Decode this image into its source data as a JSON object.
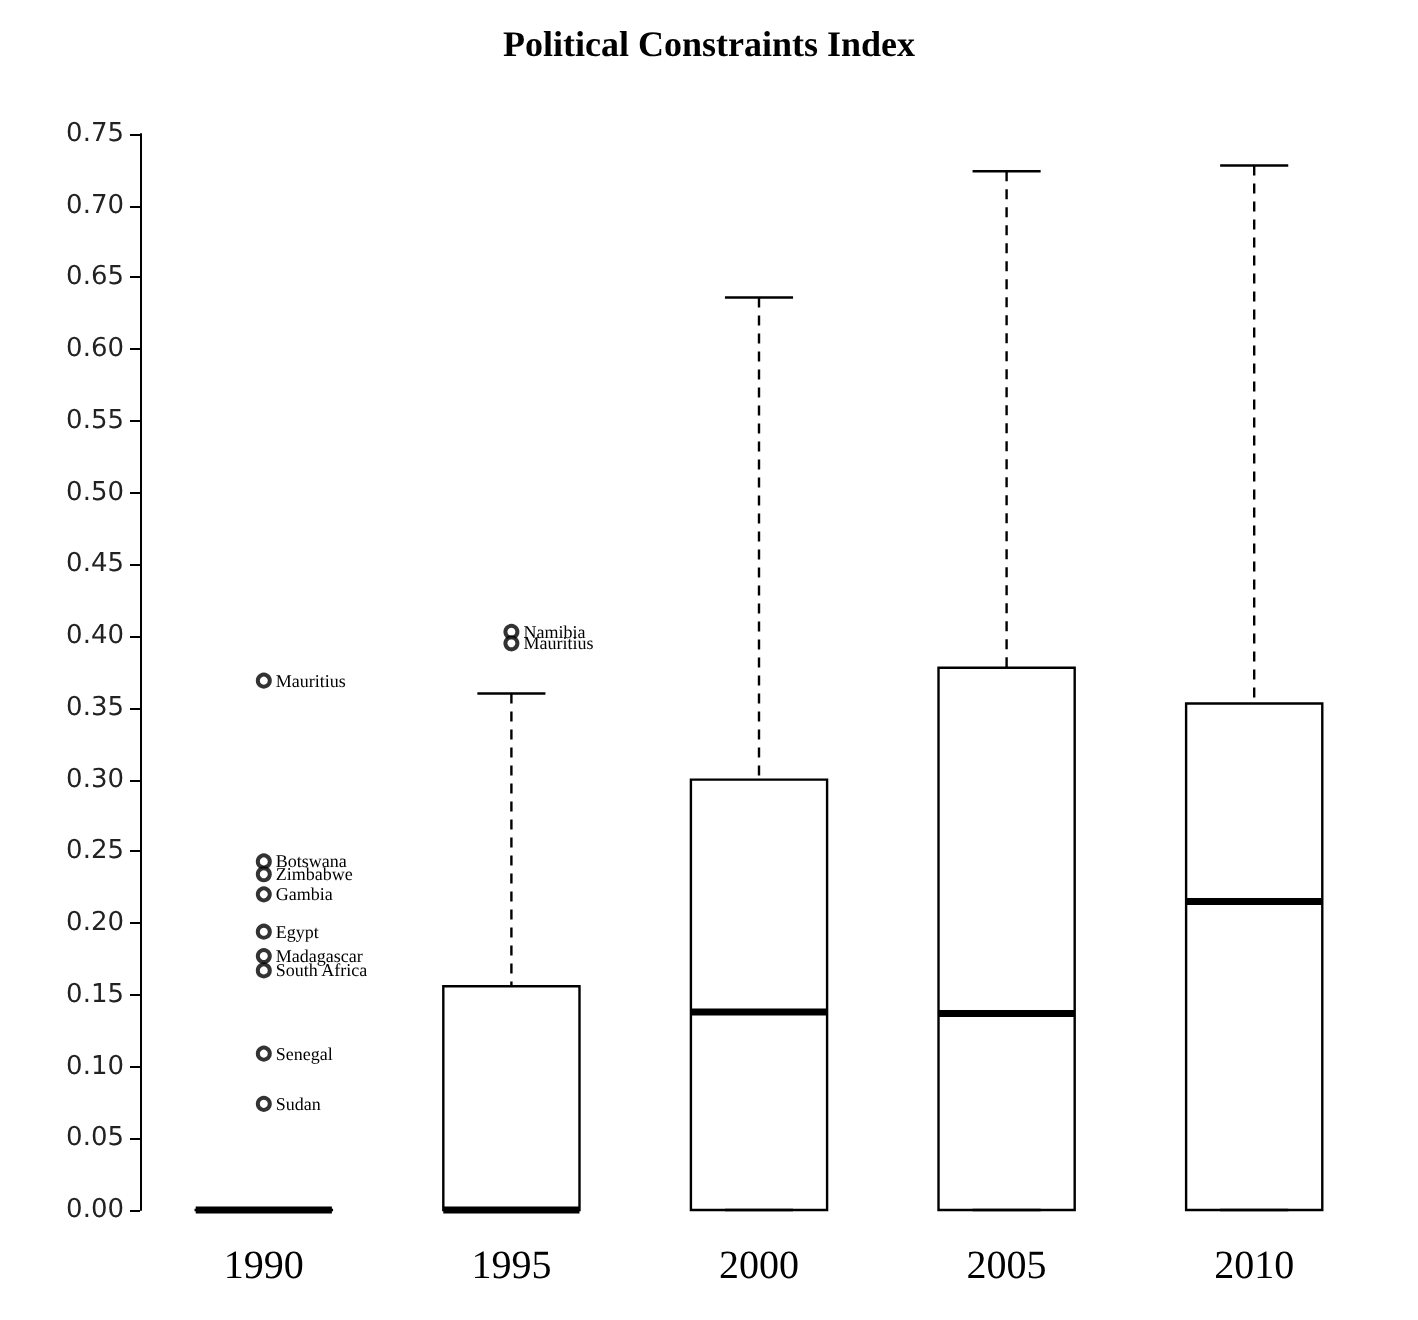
{
  "chart_data": {
    "type": "box",
    "title": "Political Constraints Index",
    "categories": [
      "1990",
      "1995",
      "2000",
      "2005",
      "2010"
    ],
    "boxes": [
      {
        "low": 0,
        "q1": 0,
        "median": 0,
        "q3": 0,
        "high": 0,
        "outliers": [
          0.369,
          0.243,
          0.234,
          0.22,
          0.194,
          0.177,
          0.167,
          0.109,
          0.074
        ]
      },
      {
        "low": 0,
        "q1": 0,
        "median": 0,
        "q3": 0.156,
        "high": 0.36,
        "outliers": [
          0.403,
          0.395
        ]
      },
      {
        "low": 0,
        "q1": 0,
        "median": 0.138,
        "q3": 0.3,
        "high": 0.636
      },
      {
        "low": 0,
        "q1": 0,
        "median": 0.137,
        "q3": 0.378,
        "high": 0.724
      },
      {
        "low": 0,
        "q1": 0,
        "median": 0.215,
        "q3": 0.353,
        "high": 0.728
      }
    ],
    "color": "#000000",
    "marker": "circle",
    "ylim": [
      0,
      0.75
    ],
    "yticks": [
      {
        "value": 0,
        "label": "0.00"
      },
      {
        "value": 0.05,
        "label": "0.05"
      },
      {
        "value": 0.1,
        "label": "0.10"
      },
      {
        "value": 0.15,
        "label": "0.15"
      },
      {
        "value": 0.2,
        "label": "0.20"
      },
      {
        "value": 0.25,
        "label": "0.25"
      },
      {
        "value": 0.3,
        "label": "0.30"
      },
      {
        "value": 0.35,
        "label": "0.35"
      },
      {
        "value": 0.4,
        "label": "0.40"
      },
      {
        "value": 0.45,
        "label": "0.45"
      },
      {
        "value": 0.5,
        "label": "0.50"
      },
      {
        "value": 0.55,
        "label": "0.55"
      },
      {
        "value": 0.6,
        "label": "0.60"
      },
      {
        "value": 0.65,
        "label": "0.65"
      },
      {
        "value": 0.7,
        "label": "0.70"
      },
      {
        "value": 0.75,
        "label": "0.75"
      }
    ],
    "grid": false,
    "annotations": [
      "Mauritius",
      "Botswana",
      "Zimbabwe",
      "Gambia",
      "Egypt",
      "Madagascar",
      "South Africa",
      "Senegal",
      "Sudan",
      "Namibia",
      "Mauritius"
    ]
  }
}
